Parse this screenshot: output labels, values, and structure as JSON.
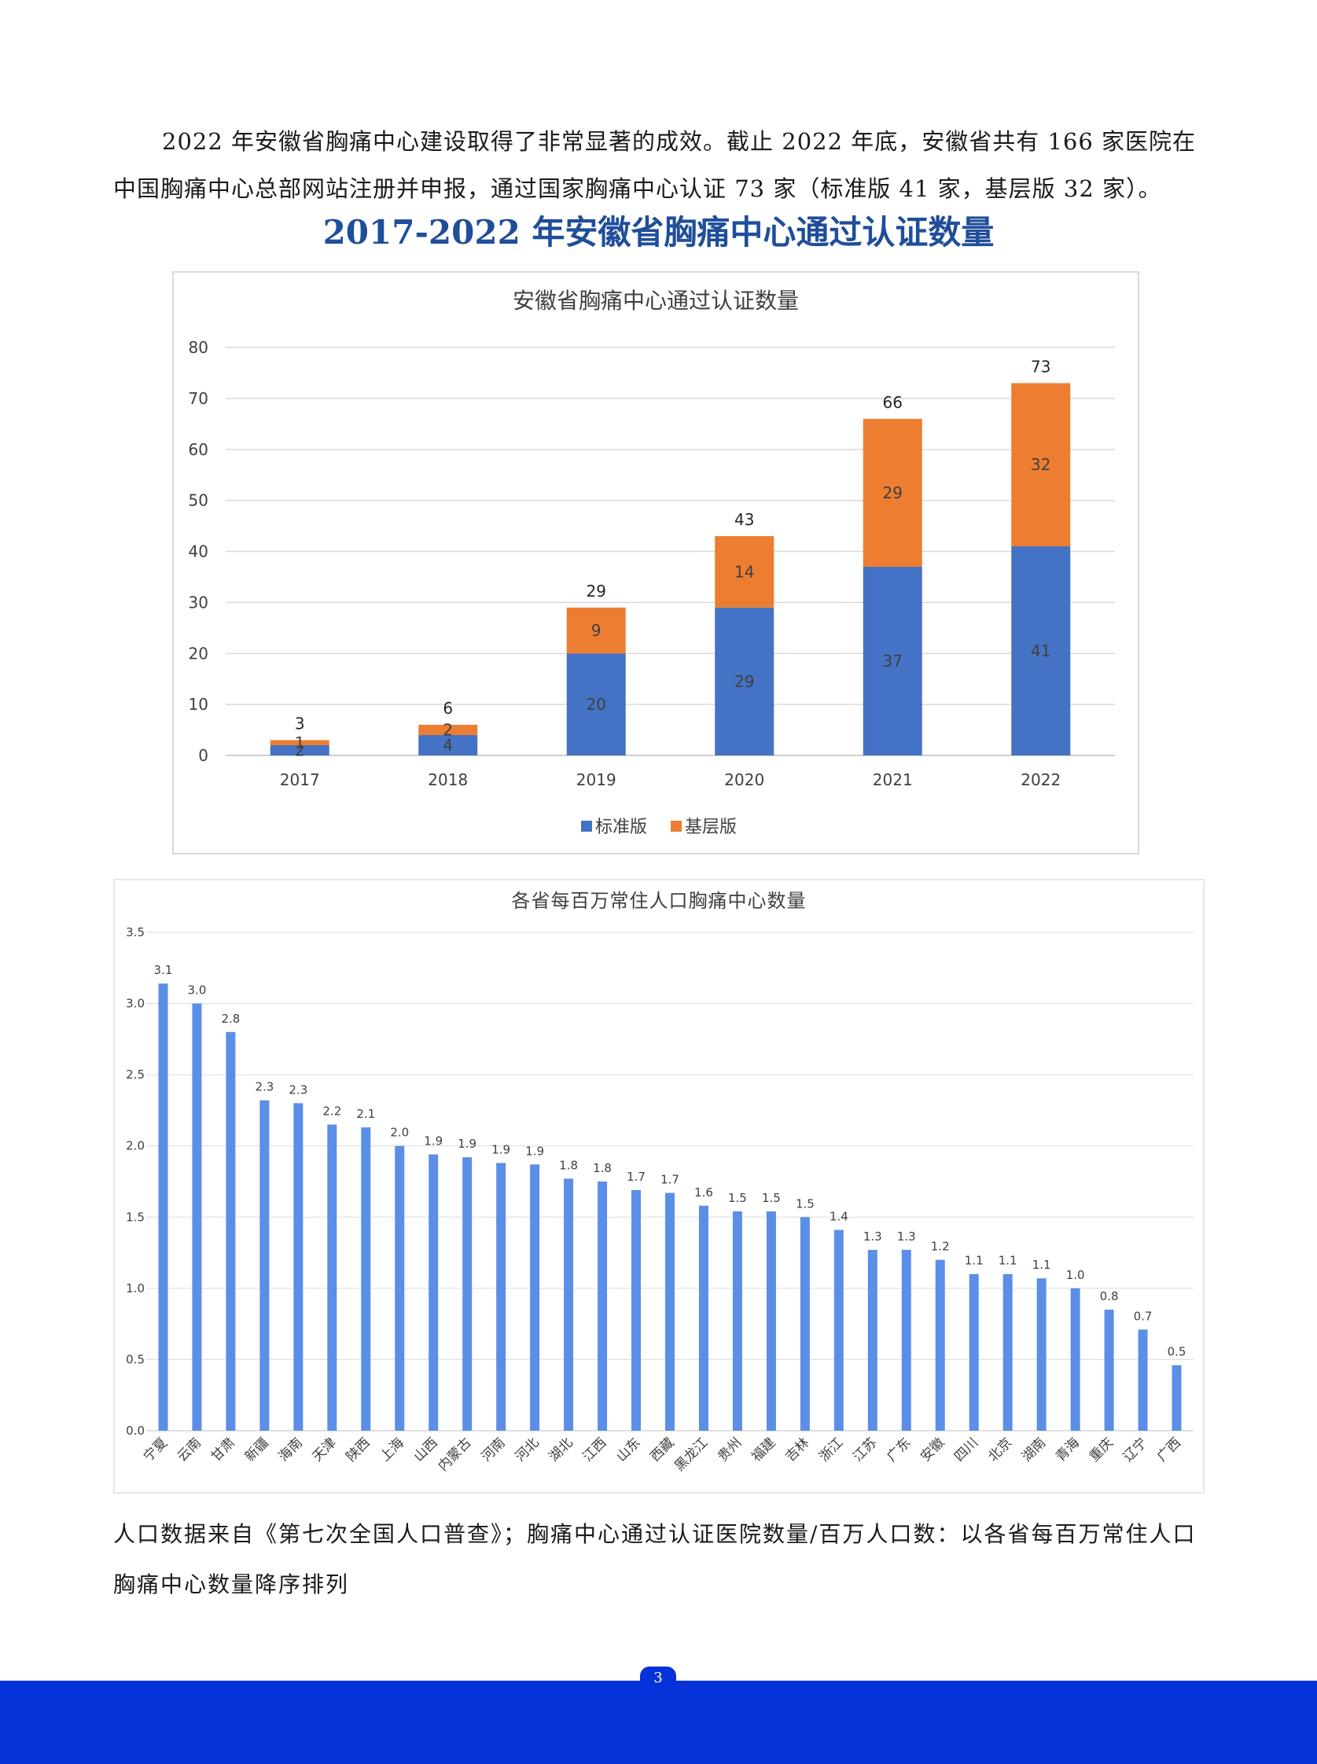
{
  "intro_text": "2022 年安徽省胸痛中心建设取得了非常显著的成效。截止 2022 年底，安徽省共有 166 家医院在中国胸痛中心总部网站注册并申报，通过国家胸痛中心认证 73 家（标准版 41 家，基层版 32 家）。",
  "section_title": "2017-2022 年安徽省胸痛中心通过认证数量",
  "chart_data": [
    {
      "type": "bar",
      "stacked": true,
      "title": "安徽省胸痛中心通过认证数量",
      "categories": [
        "2017",
        "2018",
        "2019",
        "2020",
        "2021",
        "2022"
      ],
      "series": [
        {
          "name": "标准版",
          "color": "#4472c4",
          "values": [
            2,
            4,
            20,
            29,
            37,
            41
          ]
        },
        {
          "name": "基层版",
          "color": "#ed7d31",
          "values": [
            1,
            2,
            9,
            14,
            29,
            32
          ]
        }
      ],
      "totals": [
        3,
        6,
        29,
        43,
        66,
        73
      ],
      "ylim": [
        0,
        80
      ],
      "yticks": [
        0,
        10,
        20,
        30,
        40,
        50,
        60,
        70,
        80
      ],
      "grid": true,
      "legend": "bottom"
    },
    {
      "type": "bar",
      "title": "各省每百万常住人口胸痛中心数量",
      "color": "#5b8ee6",
      "categories": [
        "宁夏",
        "云南",
        "甘肃",
        "新疆",
        "海南",
        "天津",
        "陕西",
        "上海",
        "山西",
        "内蒙古",
        "河南",
        "河北",
        "湖北",
        "江西",
        "山东",
        "西藏",
        "黑龙江",
        "贵州",
        "福建",
        "吉林",
        "浙江",
        "江苏",
        "广东",
        "安徽",
        "四川",
        "北京",
        "湖南",
        "青海",
        "重庆",
        "辽宁",
        "广西"
      ],
      "values": [
        3.14,
        3.0,
        2.8,
        2.32,
        2.3,
        2.15,
        2.13,
        2.0,
        1.94,
        1.92,
        1.88,
        1.87,
        1.77,
        1.75,
        1.69,
        1.67,
        1.58,
        1.54,
        1.54,
        1.5,
        1.41,
        1.27,
        1.27,
        1.2,
        1.1,
        1.1,
        1.07,
        1.0,
        0.85,
        0.71,
        0.46
      ],
      "labels": [
        "3.1",
        "3.0",
        "2.8",
        "2.3",
        "2.3",
        "2.2",
        "2.1",
        "2.0",
        "1.9",
        "1.9",
        "1.9",
        "1.9",
        "1.8",
        "1.8",
        "1.7",
        "1.7",
        "1.6",
        "1.5",
        "1.5",
        "1.5",
        "1.4",
        "1.3",
        "1.3",
        "1.2",
        "1.1",
        "1.1",
        "1.1",
        "1.0",
        "0.8",
        "0.7",
        "0.5"
      ],
      "ylim": [
        0,
        3.5
      ],
      "yticks": [
        "0.0",
        "0.5",
        "1.0",
        "1.5",
        "2.0",
        "2.5",
        "3.0",
        "3.5"
      ],
      "grid": true
    }
  ],
  "note_text": "人口数据来自《第七次全国人口普查》；胸痛中心通过认证医院数量/百万人口数：以各省每百万常住人口胸痛中心数量降序排列",
  "page_number": "3"
}
